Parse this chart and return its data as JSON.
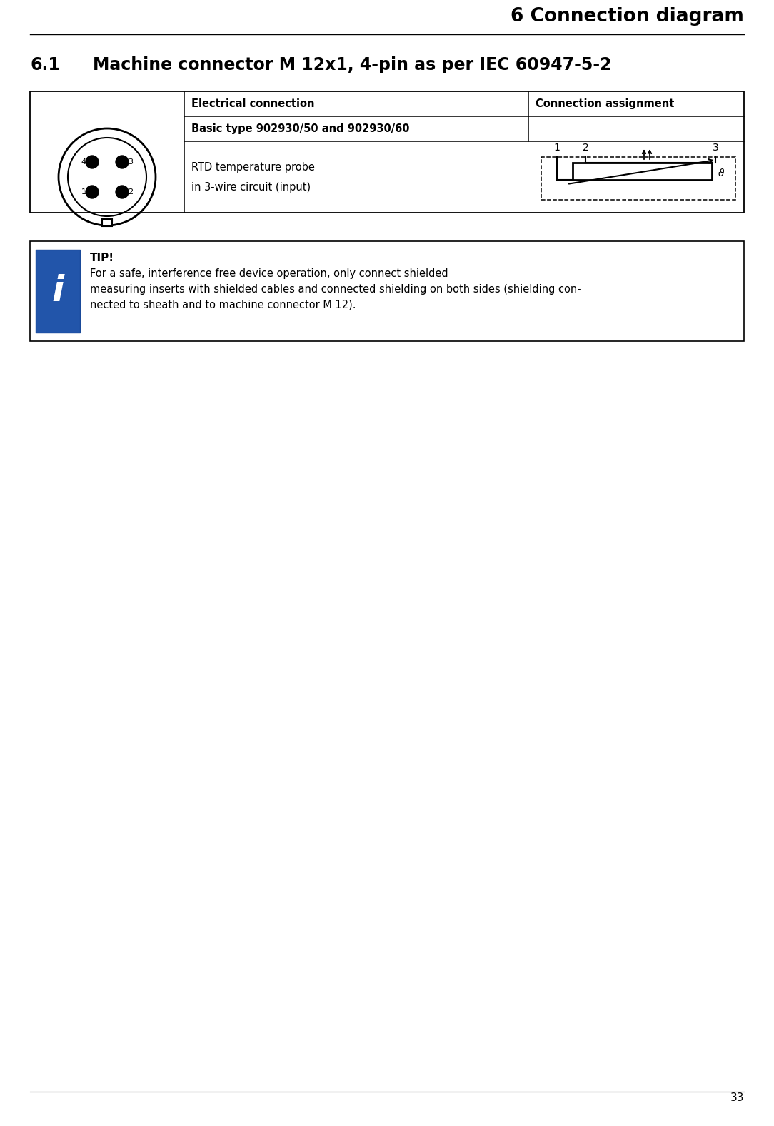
{
  "page_title": "6 Connection diagram",
  "section_num": "6.1",
  "section_title": "Machine connector M 12x1, 4-pin as per IEC 60947-5-2",
  "table_header_col1": "Electrical connection",
  "table_header_col2": "Connection assignment",
  "row1_label": "Basic type 902930/50 and 902930/60",
  "row2_col1_line1": "RTD temperature probe",
  "row2_col1_line2": "in 3-wire circuit (input)",
  "tip_title": "TIP!",
  "tip_line1": "For a safe, interference free device operation, only connect shielded",
  "tip_line2": "measuring inserts with shielded cables and connected shielding on both sides (shielding con-",
  "tip_line3": "nected to sheath and to machine connector M 12).",
  "bg_color": "#ffffff",
  "text_color": "#000000",
  "blue_color": "#2255aa",
  "page_number": "33",
  "fig_width": 10.64,
  "fig_height": 15.51,
  "dpi": 100
}
